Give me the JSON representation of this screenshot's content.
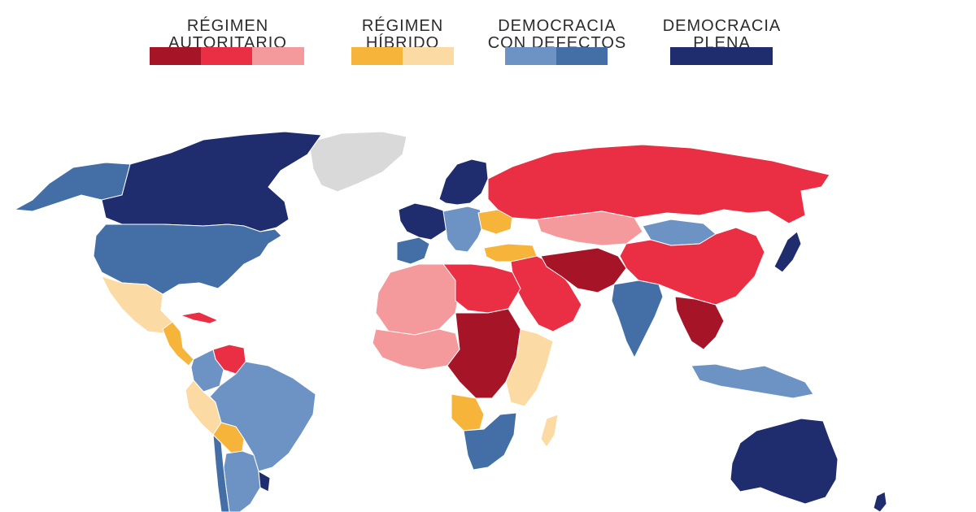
{
  "legend": {
    "groups": [
      {
        "line1": "RÉGIMEN",
        "line2": "AUTORITARIO",
        "colors": [
          "#a61527",
          "#ea2f44",
          "#f49a9c"
        ]
      },
      {
        "line1": "RÉGIMEN",
        "line2": "HÍBRIDO",
        "colors": [
          "#f7b43a",
          "#fbdba3"
        ]
      },
      {
        "line1": "DEMOCRACIA",
        "line2": "CON DEFECTOS",
        "colors": [
          "#6d93c4",
          "#436fa6"
        ]
      },
      {
        "line1": "DEMOCRACIA",
        "line2": "PLENA",
        "colors": [
          "#1f2d6e"
        ]
      }
    ]
  },
  "map": {
    "no_data_color": "#d9d9d9",
    "regions": [
      {
        "name": "canada",
        "color": "#1f2d6e"
      },
      {
        "name": "alaska",
        "color": "#436fa6"
      },
      {
        "name": "usa",
        "color": "#436fa6"
      },
      {
        "name": "greenland",
        "color": "#d9d9d9"
      },
      {
        "name": "mexico",
        "color": "#fbdba3"
      },
      {
        "name": "central-america",
        "color": "#f7b43a"
      },
      {
        "name": "cuba",
        "color": "#ea2f44"
      },
      {
        "name": "venezuela",
        "color": "#ea2f44"
      },
      {
        "name": "colombia",
        "color": "#6d93c4"
      },
      {
        "name": "peru",
        "color": "#fbdba3"
      },
      {
        "name": "brazil",
        "color": "#6d93c4"
      },
      {
        "name": "bolivia",
        "color": "#f7b43a"
      },
      {
        "name": "argentina",
        "color": "#6d93c4"
      },
      {
        "name": "chile",
        "color": "#436fa6"
      },
      {
        "name": "uruguay",
        "color": "#1f2d6e"
      },
      {
        "name": "iberia",
        "color": "#436fa6"
      },
      {
        "name": "western-europe",
        "color": "#1f2d6e"
      },
      {
        "name": "central-europe",
        "color": "#6d93c4"
      },
      {
        "name": "scandinavia",
        "color": "#1f2d6e"
      },
      {
        "name": "ukraine",
        "color": "#f7b43a"
      },
      {
        "name": "turkey",
        "color": "#f7b43a"
      },
      {
        "name": "russia",
        "color": "#ea2f44"
      },
      {
        "name": "kazakhstan",
        "color": "#f49a9c"
      },
      {
        "name": "mongolia",
        "color": "#6d93c4"
      },
      {
        "name": "china",
        "color": "#ea2f44"
      },
      {
        "name": "middle-east",
        "color": "#ea2f44"
      },
      {
        "name": "iran-afghanistan",
        "color": "#a61527"
      },
      {
        "name": "india",
        "color": "#436fa6"
      },
      {
        "name": "southeast-asia",
        "color": "#a61527"
      },
      {
        "name": "japan",
        "color": "#1f2d6e"
      },
      {
        "name": "indonesia",
        "color": "#6d93c4"
      },
      {
        "name": "australia",
        "color": "#1f2d6e"
      },
      {
        "name": "new-zealand",
        "color": "#1f2d6e"
      },
      {
        "name": "north-africa",
        "color": "#f49a9c"
      },
      {
        "name": "egypt-libya",
        "color": "#ea2f44"
      },
      {
        "name": "west-africa",
        "color": "#f49a9c"
      },
      {
        "name": "central-africa",
        "color": "#a61527"
      },
      {
        "name": "east-africa",
        "color": "#fbdba3"
      },
      {
        "name": "angola",
        "color": "#f7b43a"
      },
      {
        "name": "southern-africa",
        "color": "#436fa6"
      },
      {
        "name": "madagascar",
        "color": "#fbdba3"
      }
    ]
  }
}
